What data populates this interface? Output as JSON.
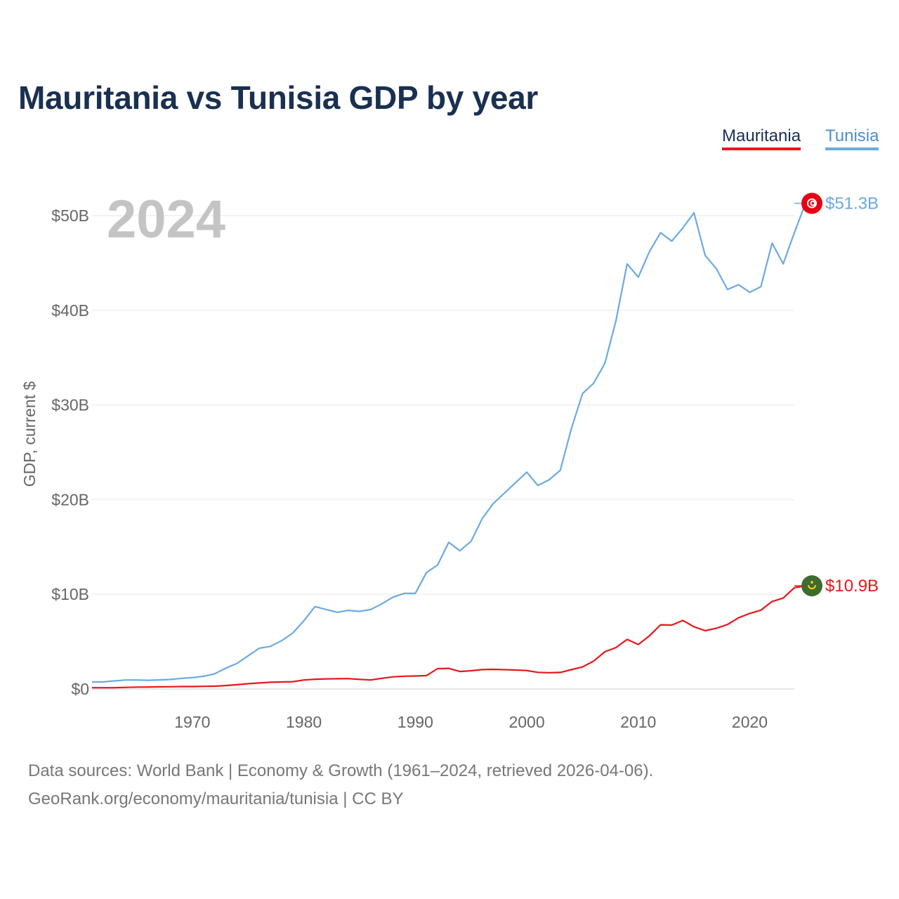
{
  "chart_data": {
    "type": "line",
    "title": "Mauritania vs Tunisia GDP by year",
    "ylabel": "GDP, current $",
    "xlabel": "",
    "year_label": "2024",
    "x_ticks": [
      1970,
      1980,
      1990,
      2000,
      2010,
      2020
    ],
    "x_tick_labels": [
      "1970",
      "1980",
      "1990",
      "2000",
      "2010",
      "2020"
    ],
    "y_ticks": [
      0,
      10,
      20,
      30,
      40,
      50
    ],
    "y_tick_labels": [
      "$0",
      "$10B",
      "$20B",
      "$30B",
      "$40B",
      "$50B"
    ],
    "y_unit": "billion USD",
    "xlim": [
      1961,
      2024
    ],
    "ylim": [
      0,
      52
    ],
    "grid": true,
    "legend_position": "top-right",
    "series": [
      {
        "name": "Mauritania",
        "color": "#e8161a",
        "end_label": "$10.9B",
        "flag_icon": "mauritania-flag-icon",
        "values": [
          0.13,
          0.13,
          0.13,
          0.17,
          0.2,
          0.21,
          0.23,
          0.24,
          0.26,
          0.26,
          0.28,
          0.3,
          0.36,
          0.45,
          0.56,
          0.64,
          0.71,
          0.74,
          0.77,
          0.95,
          1.03,
          1.07,
          1.08,
          1.1,
          1.02,
          0.96,
          1.13,
          1.28,
          1.35,
          1.37,
          1.42,
          2.15,
          2.17,
          1.85,
          1.93,
          2.05,
          2.08,
          2.04,
          2.0,
          1.95,
          1.76,
          1.72,
          1.75,
          2.04,
          2.33,
          2.95,
          3.93,
          4.38,
          5.24,
          4.7,
          5.62,
          6.78,
          6.75,
          7.24,
          6.57,
          6.16,
          6.42,
          6.81,
          7.52,
          7.98,
          8.32,
          9.24,
          9.6,
          10.7,
          10.9
        ]
      },
      {
        "name": "Tunisia",
        "color": "#6aaae4",
        "end_label": "$51.3B",
        "flag_icon": "tunisia-flag-icon",
        "values": [
          0.75,
          0.75,
          0.85,
          0.95,
          0.95,
          0.92,
          0.96,
          1.0,
          1.12,
          1.2,
          1.34,
          1.6,
          2.2,
          2.7,
          3.5,
          4.3,
          4.5,
          5.1,
          5.9,
          7.2,
          8.7,
          8.4,
          8.1,
          8.3,
          8.2,
          8.4,
          9.0,
          9.7,
          10.1,
          10.1,
          12.3,
          13.1,
          15.5,
          14.6,
          15.6,
          18.0,
          19.6,
          20.7,
          21.8,
          22.9,
          21.5,
          22.1,
          23.1,
          27.5,
          31.2,
          32.3,
          34.4,
          38.9,
          44.9,
          43.5,
          46.2,
          48.2,
          47.3,
          48.7,
          50.3,
          45.8,
          44.4,
          42.2,
          42.7,
          41.9,
          42.5,
          47.1,
          44.9,
          48.2,
          51.3
        ]
      }
    ]
  },
  "footer": {
    "sources": "Data sources: World Bank | Economy & Growth (1961–2024, retrieved 2026-04-06).",
    "link": "GeoRank.org/economy/mauritania/tunisia | CC BY"
  }
}
